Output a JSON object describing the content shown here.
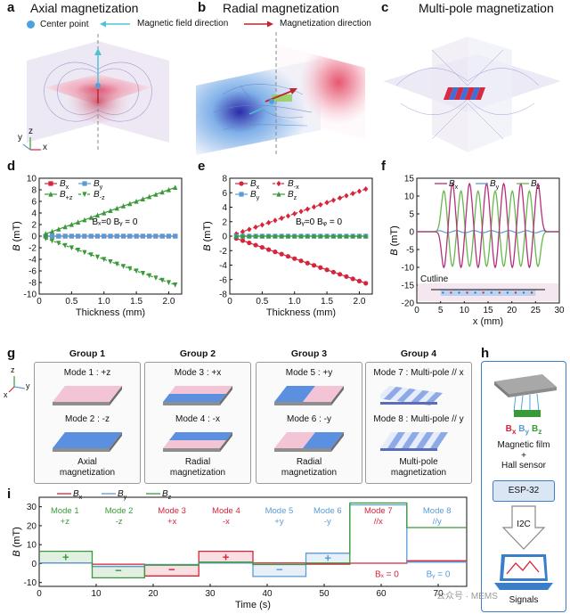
{
  "panels": {
    "a": {
      "label": "a",
      "title": "Axial  magnetization"
    },
    "b": {
      "label": "b",
      "title": "Radial  magnetization"
    },
    "c": {
      "label": "c",
      "title": "Multi-pole  magnetization"
    },
    "d": {
      "label": "d"
    },
    "e": {
      "label": "e"
    },
    "f": {
      "label": "f"
    },
    "g": {
      "label": "g"
    },
    "h": {
      "label": "h"
    },
    "i": {
      "label": "i"
    }
  },
  "legend_top": {
    "center_point": "Center point",
    "field_dir": "Magnetic field direction",
    "mag_dir": "Magnetization direction"
  },
  "axes_triad_a": {
    "y": "y",
    "z": "z",
    "x": "x"
  },
  "axes_triad_g": {
    "z": "z",
    "y": "y",
    "x": "x"
  },
  "colors": {
    "bx": "#d6243b",
    "by": "#5b9bd5",
    "bz": "#3a9a3a",
    "pink": "#f2c4d6",
    "blue": "#5b8fe0",
    "panel_border": "#3a7dc9"
  },
  "chart_data": [
    {
      "id": "d",
      "type": "line",
      "xlabel": "Thickness (mm)",
      "ylabel": "B (mT)",
      "xlim": [
        0,
        2.2
      ],
      "ylim": [
        -10,
        10
      ],
      "xticks": [
        0,
        0.5,
        1.0,
        1.5,
        2.0
      ],
      "xtick_labels": [
        "0",
        "0.5",
        "1.0",
        "1.5",
        "2.0"
      ],
      "yticks": [
        -10,
        -8,
        -6,
        -4,
        -2,
        0,
        2,
        4,
        6,
        8,
        10
      ],
      "annotation": "Bₓ=0 Bᵧ = 0",
      "legend": [
        "Bx",
        "By",
        "B+z",
        "B-z"
      ],
      "x": [
        0.1,
        0.2,
        0.3,
        0.4,
        0.5,
        0.6,
        0.7,
        0.8,
        0.9,
        1.0,
        1.1,
        1.2,
        1.3,
        1.4,
        1.5,
        1.6,
        1.7,
        1.8,
        1.9,
        2.0,
        2.1
      ],
      "series": [
        {
          "name": "Bx",
          "style": "solid-square",
          "values": [
            0,
            0,
            0,
            0,
            0,
            0,
            0,
            0,
            0,
            0,
            0,
            0,
            0,
            0,
            0,
            0,
            0,
            0,
            0,
            0,
            0
          ]
        },
        {
          "name": "By",
          "style": "solid-square",
          "values": [
            0,
            0,
            0,
            0,
            0,
            0,
            0,
            0,
            0,
            0,
            0,
            0,
            0,
            0,
            0,
            0,
            0,
            0,
            0,
            0,
            0
          ]
        },
        {
          "name": "B+z",
          "style": "solid-triangle-up",
          "values": [
            0.4,
            0.8,
            1.2,
            1.6,
            2.0,
            2.4,
            2.8,
            3.2,
            3.6,
            4.0,
            4.4,
            4.8,
            5.2,
            5.6,
            6.0,
            6.4,
            6.8,
            7.2,
            7.6,
            8.0,
            8.4
          ]
        },
        {
          "name": "B-z",
          "style": "dashed-triangle-down",
          "values": [
            -0.4,
            -0.8,
            -1.2,
            -1.6,
            -2.0,
            -2.4,
            -2.8,
            -3.2,
            -3.6,
            -4.0,
            -4.4,
            -4.8,
            -5.2,
            -5.6,
            -6.0,
            -6.4,
            -6.8,
            -7.2,
            -7.6,
            -8.0,
            -8.4
          ]
        }
      ]
    },
    {
      "id": "e",
      "type": "line",
      "xlabel": "Thickness (mm)",
      "ylabel": "B (mT)",
      "xlim": [
        0,
        2.2
      ],
      "ylim": [
        -8,
        8
      ],
      "xticks": [
        0,
        0.5,
        1.0,
        1.5,
        2.0
      ],
      "xtick_labels": [
        "0",
        "0.5",
        "1.0",
        "1.5",
        "2.0"
      ],
      "yticks": [
        -8,
        -6,
        -4,
        -2,
        0,
        2,
        4,
        6,
        8
      ],
      "annotation": "Bᵧ=0 Bᵩ = 0",
      "legend": [
        "Bx",
        "B-x",
        "By",
        "Bz"
      ],
      "x": [
        0.1,
        0.2,
        0.3,
        0.4,
        0.5,
        0.6,
        0.7,
        0.8,
        0.9,
        1.0,
        1.1,
        1.2,
        1.3,
        1.4,
        1.5,
        1.6,
        1.7,
        1.8,
        1.9,
        2.0,
        2.1
      ],
      "series": [
        {
          "name": "Bx",
          "style": "solid-circle",
          "values": [
            -0.31,
            -0.62,
            -0.93,
            -1.24,
            -1.55,
            -1.86,
            -2.17,
            -2.48,
            -2.79,
            -3.1,
            -3.41,
            -3.72,
            -4.03,
            -4.34,
            -4.65,
            -4.96,
            -5.27,
            -5.58,
            -5.89,
            -6.2,
            -6.51
          ]
        },
        {
          "name": "B-x",
          "style": "dashed-diamond",
          "values": [
            0.31,
            0.62,
            0.93,
            1.24,
            1.55,
            1.86,
            2.17,
            2.48,
            2.79,
            3.1,
            3.41,
            3.72,
            4.03,
            4.34,
            4.65,
            4.96,
            5.27,
            5.58,
            5.89,
            6.2,
            6.51
          ]
        },
        {
          "name": "By",
          "style": "solid-square",
          "values": [
            0,
            0,
            0,
            0,
            0,
            0,
            0,
            0,
            0,
            0,
            0,
            0,
            0,
            0,
            0,
            0,
            0,
            0,
            0,
            0,
            0
          ]
        },
        {
          "name": "Bz",
          "style": "solid-triangle-up",
          "values": [
            0,
            0,
            0,
            0,
            0,
            0,
            0,
            0,
            0,
            0,
            0,
            0,
            0,
            0,
            0,
            0,
            0,
            0,
            0,
            0,
            0
          ]
        }
      ]
    },
    {
      "id": "f",
      "type": "line",
      "xlabel": "x (mm)",
      "ylabel": "B (mT)",
      "xlim": [
        0,
        30
      ],
      "ylim": [
        -20,
        15
      ],
      "xticks": [
        0,
        5,
        10,
        15,
        20,
        25,
        30
      ],
      "yticks": [
        -20,
        -15,
        -10,
        -5,
        0,
        5,
        10,
        15
      ],
      "legend": [
        "Bx",
        "By",
        "Bz"
      ],
      "inset_label": "Cutline",
      "series": [
        {
          "name": "Bx",
          "peaks_x": [
            7.5,
            11.1,
            14.7,
            18.3,
            21.9,
            25.5
          ],
          "amplitude": 13.5
        },
        {
          "name": "By",
          "amplitude": 0.3
        },
        {
          "name": "Bz",
          "peaks_x": [
            5.7,
            9.3,
            12.9,
            16.5,
            20.1,
            23.7
          ],
          "amplitude": 11.5
        }
      ]
    },
    {
      "id": "i",
      "type": "line",
      "xlabel": "Time (s)",
      "ylabel": "B (mT)",
      "xlim": [
        0,
        75
      ],
      "ylim": [
        -12,
        35
      ],
      "xticks": [
        0,
        10,
        20,
        30,
        40,
        50,
        60,
        70
      ],
      "yticks": [
        -10,
        0,
        10,
        20,
        30
      ],
      "legend": [
        "Bx",
        "By",
        "Bz"
      ],
      "segments": [
        {
          "t": [
            0,
            9.3
          ],
          "bx": 0.3,
          "by": 0.3,
          "bz": 6.5,
          "sign": "+"
        },
        {
          "t": [
            9.3,
            18.5
          ],
          "bx": -0.3,
          "by": -1.5,
          "bz": -7.5,
          "sign": "−"
        },
        {
          "t": [
            18.5,
            28
          ],
          "bx": -6.5,
          "by": -0.5,
          "bz": -0.8,
          "sign": "−"
        },
        {
          "t": [
            28,
            37.5
          ],
          "bx": 6.5,
          "by": 0.3,
          "bz": 0.8,
          "sign": "+"
        },
        {
          "t": [
            37.5,
            46.8
          ],
          "bx": 0.3,
          "by": -6.8,
          "bz": -0.5,
          "sign": "−"
        },
        {
          "t": [
            46.8,
            54.5
          ],
          "bx": -0.3,
          "by": 5.5,
          "bz": 0.3,
          "sign": "+"
        },
        {
          "t": [
            54.5,
            64.5
          ],
          "bx": 0.2,
          "by": 31,
          "bz": 32,
          "sign": ""
        },
        {
          "t": [
            64.5,
            75
          ],
          "bx": 1.5,
          "by": 0.8,
          "bz": 19,
          "sign": ""
        }
      ],
      "mode_labels": [
        {
          "l1": "Mode 1",
          "l2": "+z",
          "color": "bz",
          "t": 4.5
        },
        {
          "l1": "Mode 2",
          "l2": "-z",
          "color": "bz",
          "t": 14
        },
        {
          "l1": "Mode 3",
          "l2": "+x",
          "color": "bx",
          "t": 23.3
        },
        {
          "l1": "Mode 4",
          "l2": "-x",
          "color": "bx",
          "t": 32.8
        },
        {
          "l1": "Mode 5",
          "l2": "+y",
          "color": "by",
          "t": 42.1
        },
        {
          "l1": "Mode 6",
          "l2": "-y",
          "color": "by",
          "t": 50.6
        },
        {
          "l1": "Mode 7",
          "l2": "//x",
          "color": "bx",
          "t": 59.5
        },
        {
          "l1": "Mode 8",
          "l2": "//y",
          "color": "by",
          "t": 69.8
        }
      ],
      "annotations": [
        {
          "text": "Bₓ = 0",
          "color": "bx",
          "t": 61
        },
        {
          "text": "Bᵧ = 0",
          "color": "by",
          "t": 70
        }
      ]
    }
  ],
  "groups": [
    {
      "title": "Group 1",
      "mode_a": "Mode 1 : +z",
      "mode_b": "Mode 2 : -z",
      "foot1": "Axial",
      "foot2": "magnetization",
      "tile_a": "pink-top",
      "tile_b": "blue-top"
    },
    {
      "title": "Group 2",
      "mode_a": "Mode 3 : +x",
      "mode_b": "Mode 4 : -x",
      "foot1": "Radial",
      "foot2": "magnetization",
      "tile_a": "pink-blue",
      "tile_b": "blue-pink"
    },
    {
      "title": "Group 3",
      "mode_a": "Mode 5 : +y",
      "mode_b": "Mode 6 : -y",
      "foot1": "Radial",
      "foot2": "magnetization",
      "tile_a": "blue-pink-y",
      "tile_b": "pink-blue-y"
    },
    {
      "title": "Group 4",
      "mode_a": "Mode 7 : Multi-pole // x",
      "mode_b": "Mode 8 : Multi-pole // y",
      "foot1": "Multi-pole",
      "foot2": "magnetization",
      "tile_a": "stripes-x",
      "tile_b": "stripes-y"
    }
  ],
  "panel_h": {
    "bxyz": "Bₓ Bᵧ Bᵩ",
    "film1": "Magnetic film",
    "plus": "+",
    "film2": "Hall sensor",
    "chip": "ESP-32",
    "bus": "I2C",
    "signals": "Signals"
  },
  "watermark": "公众号 · MEMS"
}
